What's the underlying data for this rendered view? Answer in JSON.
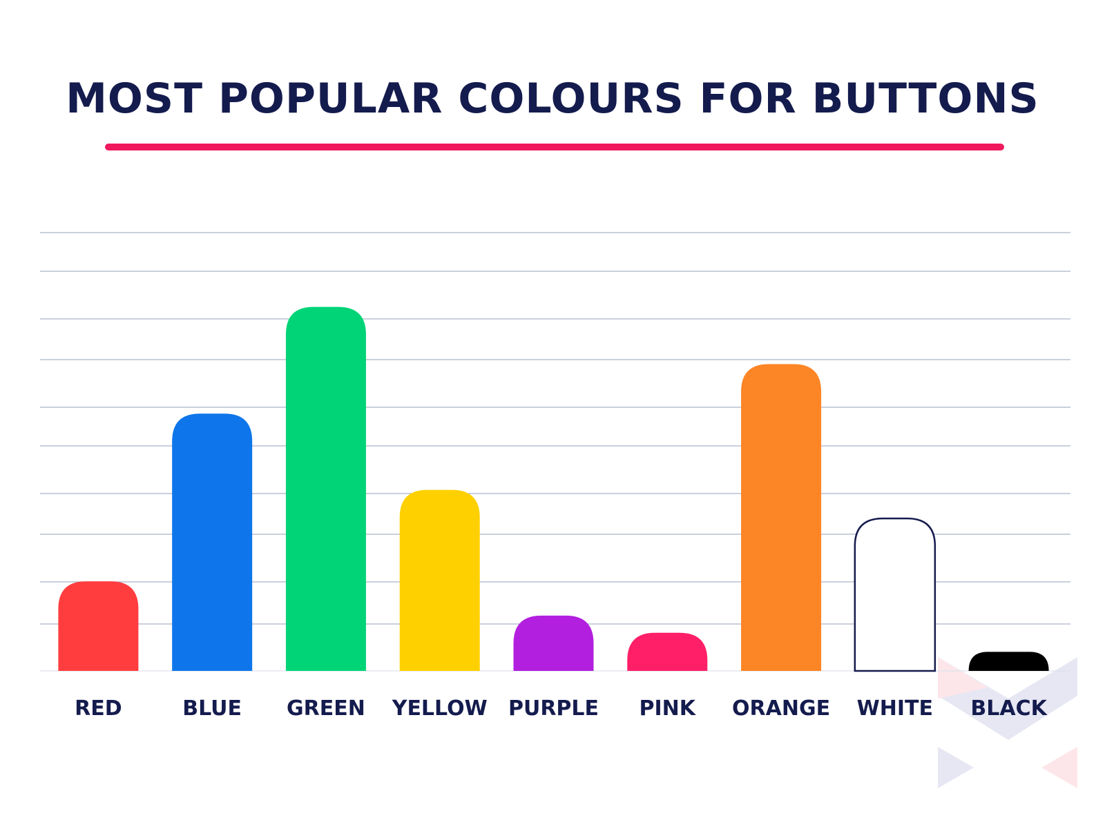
{
  "chart_data": {
    "type": "bar",
    "title": "MOST POPULAR COLOURS FOR BUTTONS",
    "xlabel": "",
    "ylabel": "",
    "categories": [
      "RED",
      "BLUE",
      "GREEN",
      "YELLOW",
      "PURPLE",
      "PINK",
      "ORANGE",
      "WHITE",
      "BLACK"
    ],
    "values": [
      2.35,
      6.75,
      9.55,
      4.75,
      1.45,
      1.0,
      8.05,
      4.0,
      0.5
    ],
    "ylim": [
      0,
      11.5
    ],
    "grid": true,
    "bar_colors": [
      "#ff3d3f",
      "#0e76ea",
      "#00d477",
      "#ffd000",
      "#b21fdf",
      "#ff1f68",
      "#fc8526",
      "#ffffff",
      "#000000"
    ],
    "bar_outline": [
      "",
      "",
      "",
      "",
      "",
      "",
      "",
      "#141b4d",
      ""
    ],
    "text_color": "#141b4d",
    "accent_color": "#f0195e",
    "grid_color": "#aab4c8"
  }
}
